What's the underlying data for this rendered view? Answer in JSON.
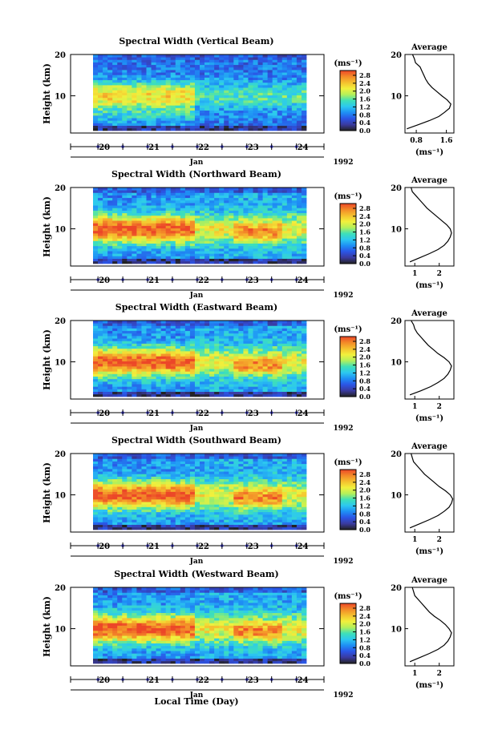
{
  "figure": {
    "xlabel": "Local Time (Day)",
    "month_label": "Jan",
    "year_label": "1992",
    "profile_title": "Average",
    "colorbar_unit": "(ms⁻¹)",
    "profile_xlabel": "(ms⁻¹)"
  },
  "colorbar": {
    "ticks": [
      "0.0",
      "0.4",
      "0.8",
      "1.2",
      "1.6",
      "2.0",
      "2.4",
      "2.8"
    ],
    "colors": [
      "#222222",
      "#3a3aa0",
      "#2b55e6",
      "#1e8ff5",
      "#2cc8f0",
      "#3ee0b8",
      "#b4f05a",
      "#f2f03c",
      "#f5c02e",
      "#f38a28",
      "#ec4628"
    ]
  },
  "chart_data": [
    {
      "type": "heatmap",
      "title": "Spectral Width (Vertical Beam)",
      "ylabel": "Height (km)",
      "yticks": [
        "20",
        "10"
      ],
      "ylim": [
        1,
        20
      ],
      "xticks": [
        "20",
        "21",
        "22",
        "23",
        "24"
      ],
      "clim": [
        0.0,
        2.8
      ],
      "profile": {
        "xticks": [
          "0.8",
          "1.6"
        ],
        "xlim": [
          0.5,
          1.8
        ],
        "height": [
          2,
          3,
          4,
          5,
          6,
          7,
          8,
          9,
          10,
          11,
          12,
          13,
          14,
          15,
          16,
          17,
          18,
          19,
          20
        ],
        "value": [
          0.55,
          0.85,
          1.15,
          1.4,
          1.55,
          1.68,
          1.72,
          1.62,
          1.48,
          1.35,
          1.22,
          1.12,
          1.05,
          1.0,
          0.95,
          0.9,
          0.78,
          0.75,
          0.7
        ]
      }
    },
    {
      "type": "heatmap",
      "title": "Spectral Width (Northward Beam)",
      "ylabel": "Height (km)",
      "yticks": [
        "20",
        "10"
      ],
      "ylim": [
        1,
        20
      ],
      "xticks": [
        "20",
        "21",
        "22",
        "23",
        "24"
      ],
      "clim": [
        0.0,
        2.8
      ],
      "profile": {
        "xticks": [
          "1",
          "2"
        ],
        "xlim": [
          0.6,
          2.6
        ],
        "height": [
          2,
          3,
          4,
          5,
          6,
          7,
          8,
          9,
          10,
          11,
          12,
          13,
          14,
          15,
          16,
          17,
          18,
          19,
          20
        ],
        "value": [
          0.8,
          1.2,
          1.6,
          1.95,
          2.2,
          2.35,
          2.45,
          2.5,
          2.45,
          2.3,
          2.1,
          1.9,
          1.7,
          1.5,
          1.35,
          1.2,
          1.05,
          0.9,
          0.85
        ]
      }
    },
    {
      "type": "heatmap",
      "title": "Spectral Width (Eastward Beam)",
      "ylabel": "Height (km)",
      "yticks": [
        "20",
        "10"
      ],
      "ylim": [
        1,
        20
      ],
      "xticks": [
        "20",
        "21",
        "22",
        "23",
        "24"
      ],
      "clim": [
        0.0,
        2.8
      ],
      "profile": {
        "xticks": [
          "1",
          "2"
        ],
        "xlim": [
          0.6,
          2.6
        ],
        "height": [
          2,
          3,
          4,
          5,
          6,
          7,
          8,
          9,
          10,
          11,
          12,
          13,
          14,
          15,
          16,
          17,
          18,
          19,
          20
        ],
        "value": [
          0.8,
          1.25,
          1.65,
          1.95,
          2.2,
          2.35,
          2.45,
          2.5,
          2.4,
          2.2,
          1.95,
          1.75,
          1.55,
          1.4,
          1.25,
          1.1,
          1.0,
          0.95,
          0.85
        ]
      }
    },
    {
      "type": "heatmap",
      "title": "Spectral Width (Southward Beam)",
      "ylabel": "Height (km)",
      "yticks": [
        "20",
        "10"
      ],
      "ylim": [
        1,
        20
      ],
      "xticks": [
        "20",
        "21",
        "22",
        "23",
        "24"
      ],
      "clim": [
        0.0,
        2.8
      ],
      "profile": {
        "xticks": [
          "1",
          "2"
        ],
        "xlim": [
          0.6,
          2.6
        ],
        "height": [
          2,
          3,
          4,
          5,
          6,
          7,
          8,
          9,
          10,
          11,
          12,
          13,
          14,
          15,
          16,
          17,
          18,
          19,
          20
        ],
        "value": [
          0.8,
          1.2,
          1.6,
          1.95,
          2.2,
          2.4,
          2.5,
          2.55,
          2.45,
          2.25,
          2.0,
          1.8,
          1.6,
          1.4,
          1.25,
          1.1,
          0.95,
          0.9,
          0.85
        ]
      }
    },
    {
      "type": "heatmap",
      "title": "Spectral Width (Westward Beam)",
      "ylabel": "Height (km)",
      "yticks": [
        "20",
        "10"
      ],
      "ylim": [
        1,
        20
      ],
      "xticks": [
        "20",
        "21",
        "22",
        "23",
        "24"
      ],
      "clim": [
        0.0,
        2.8
      ],
      "profile": {
        "xticks": [
          "1",
          "2"
        ],
        "xlim": [
          0.6,
          2.6
        ],
        "height": [
          2,
          3,
          4,
          5,
          6,
          7,
          8,
          9,
          10,
          11,
          12,
          13,
          14,
          15,
          16,
          17,
          18,
          19,
          20
        ],
        "value": [
          0.8,
          1.2,
          1.6,
          1.95,
          2.2,
          2.35,
          2.45,
          2.5,
          2.4,
          2.25,
          2.05,
          1.8,
          1.6,
          1.45,
          1.3,
          1.15,
          1.0,
          0.95,
          0.9
        ]
      }
    }
  ]
}
